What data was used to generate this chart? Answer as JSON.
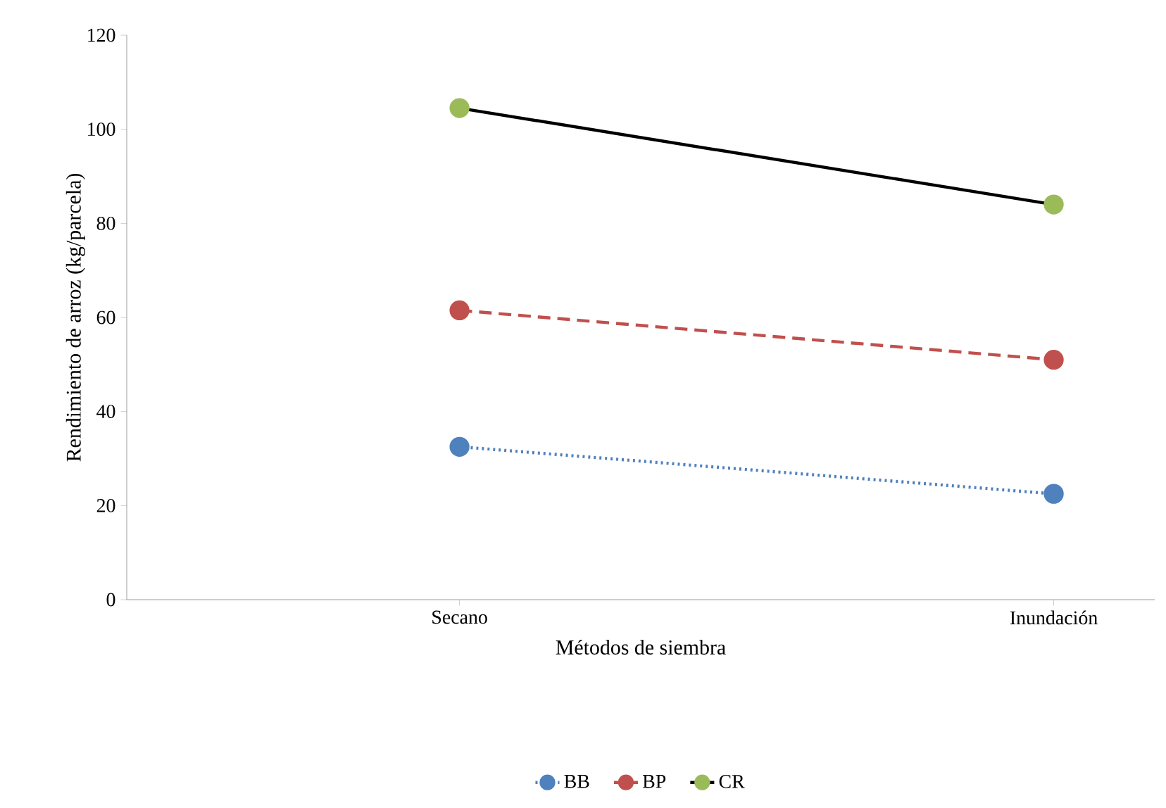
{
  "chart_data": {
    "type": "line",
    "xlabel": "Métodos de siembra",
    "ylabel": "Rendimiento de arroz (kg/parcela)",
    "categories": [
      "Secano",
      "Inundación"
    ],
    "series": [
      {
        "name": "BB",
        "color": "#4f81bd",
        "line_style": "dotted",
        "values": [
          32.5,
          22.5
        ]
      },
      {
        "name": "BP",
        "color": "#c0504d",
        "line_style": "dashed",
        "values": [
          61.5,
          51
        ]
      },
      {
        "name": "CR",
        "color": "#000000",
        "colors": [
          "#9bbb59",
          "#9bbb59"
        ],
        "line_style": "solid",
        "values": [
          104.5,
          84
        ]
      }
    ],
    "ylim": [
      0,
      120
    ],
    "yticks": [
      0,
      20,
      40,
      60,
      80,
      100,
      120
    ],
    "marker": "circle",
    "legend": "bottom",
    "grid": false
  }
}
